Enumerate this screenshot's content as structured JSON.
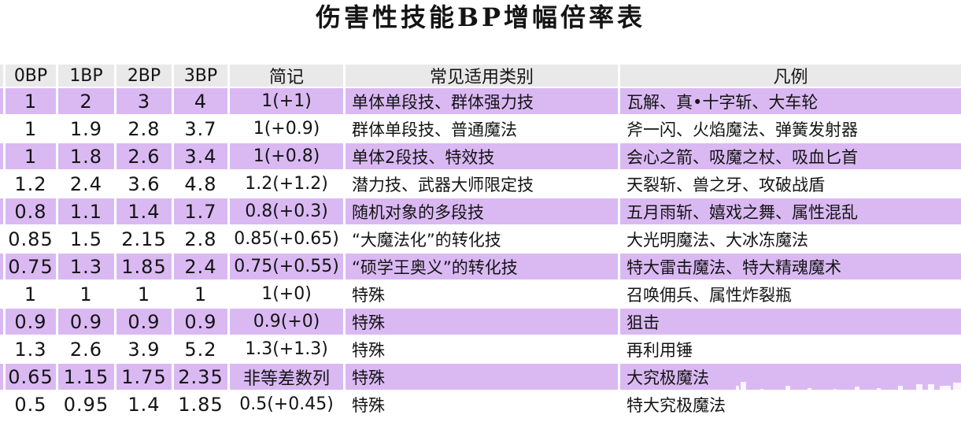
{
  "title": "伤害性技能BP增幅倍率表",
  "colors": {
    "highlight_row": "#dab9f3",
    "header_row": "#e9e9e9"
  },
  "table": {
    "headers": [
      "0BP",
      "1BP",
      "2BP",
      "3BP",
      "简记",
      "常见适用类别",
      "凡例"
    ],
    "rows": [
      [
        "1",
        "2",
        "3",
        "4",
        "1(+1)",
        "单体单段技、群体强力技",
        "瓦解、真•十字斩、大车轮"
      ],
      [
        "1",
        "1.9",
        "2.8",
        "3.7",
        "1(+0.9)",
        "群体单段技、普通魔法",
        "斧一闪、火焰魔法、弹簧发射器"
      ],
      [
        "1",
        "1.8",
        "2.6",
        "3.4",
        "1(+0.8)",
        "单体2段技、特效技",
        "会心之箭、吸魔之杖、吸血匕首"
      ],
      [
        "1.2",
        "2.4",
        "3.6",
        "4.8",
        "1.2(+1.2)",
        "潜力技、武器大师限定技",
        "天裂斩、兽之牙、攻破战盾"
      ],
      [
        "0.8",
        "1.1",
        "1.4",
        "1.7",
        "0.8(+0.3)",
        "随机对象的多段技",
        "五月雨斩、嬉戏之舞、属性混乱"
      ],
      [
        "0.85",
        "1.5",
        "2.15",
        "2.8",
        "0.85(+0.65)",
        "“大魔法化”的转化技",
        "大光明魔法、大冰冻魔法"
      ],
      [
        "0.75",
        "1.3",
        "1.85",
        "2.4",
        "0.75(+0.55)",
        "“硕学王奥义”的转化技",
        "特大雷击魔法、特大精魂魔术"
      ],
      [
        "1",
        "1",
        "1",
        "1",
        "1(+0)",
        "特殊",
        "召唤佣兵、属性炸裂瓶"
      ],
      [
        "0.9",
        "0.9",
        "0.9",
        "0.9",
        "0.9(+0)",
        "特殊",
        "狙击"
      ],
      [
        "1.3",
        "2.6",
        "3.9",
        "5.2",
        "1.3(+1.3)",
        "特殊",
        "再利用锤"
      ],
      [
        "0.65",
        "1.15",
        "1.75",
        "2.35",
        "非等差数列",
        "特殊",
        "大究极魔法"
      ],
      [
        "0.5",
        "0.95",
        "1.4",
        "1.85",
        "0.5(+0.45)",
        "特殊",
        "特大究极魔法"
      ]
    ]
  }
}
